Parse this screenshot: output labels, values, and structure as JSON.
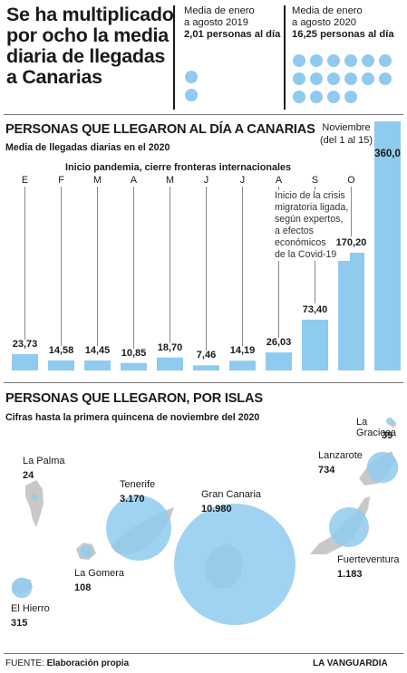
{
  "headline": "Se ha multiplicado por ocho la media diaria de llegadas a Canarias",
  "avg2019": {
    "line1": "Media de enero",
    "line2": "a agosto 2019",
    "value": "2,01 personas al día",
    "dots": 2
  },
  "avg2020": {
    "line1": "Media de enero",
    "line2": "a agosto 2020",
    "value": "16,25 personas al día",
    "dots": 16
  },
  "section1": {
    "title": "PERSONAS QUE LLEGARON AL DÍA A CANARIAS",
    "subtitle": "Media de llegadas diarias en el 2020"
  },
  "annotations": {
    "pandemic": "Inicio pandemia, cierre fronteras internacionales",
    "crisis": [
      "Inicio de la crisis",
      "migratoria ligada,",
      "según expertos,",
      "a efectos",
      "económicos",
      "de la Covid-19"
    ],
    "november": [
      "Noviembre",
      "(del 1 al 15)"
    ]
  },
  "chart_data": {
    "type": "bar",
    "categories": [
      "E",
      "F",
      "M",
      "A",
      "M",
      "J",
      "J",
      "A",
      "S",
      "O",
      ""
    ],
    "values": [
      23.73,
      14.58,
      14.45,
      10.85,
      18.7,
      7.46,
      14.19,
      26.03,
      73.4,
      170.2,
      360.0
    ],
    "value_labels": [
      "23,73",
      "14,58",
      "14,45",
      "10,85",
      "18,70",
      "7,46",
      "14,19",
      "26,03",
      "73,40",
      "170,20",
      "360,0"
    ],
    "color": "#8fcbef"
  },
  "section2": {
    "title": "PERSONAS QUE LLEGARON, POR ISLAS",
    "subtitle": "Cifras hasta la primera quincena de noviembre del 2020"
  },
  "islands": [
    {
      "name": "La Graciosa",
      "value": "39",
      "people": 39
    },
    {
      "name": "Lanzarote",
      "value": "734",
      "people": 734
    },
    {
      "name": "Fuerteventura",
      "value": "1.183",
      "people": 1183
    },
    {
      "name": "Gran Canaria",
      "value": "10.980",
      "people": 10980
    },
    {
      "name": "Tenerife",
      "value": "3.170",
      "people": 3170
    },
    {
      "name": "La Gomera",
      "value": "108",
      "people": 108
    },
    {
      "name": "La Palma",
      "value": "24",
      "people": 24
    },
    {
      "name": "El Hierro",
      "value": "315",
      "people": 315
    }
  ],
  "footer": {
    "source_label": "FUENTE:",
    "source": "Elaboración propia",
    "brand": "LA VANGUARDIA"
  },
  "colors": {
    "bar": "#8fcbef",
    "circle": "#8fcbef",
    "island": "#c8c8c8",
    "text": "#1a1a1a"
  }
}
